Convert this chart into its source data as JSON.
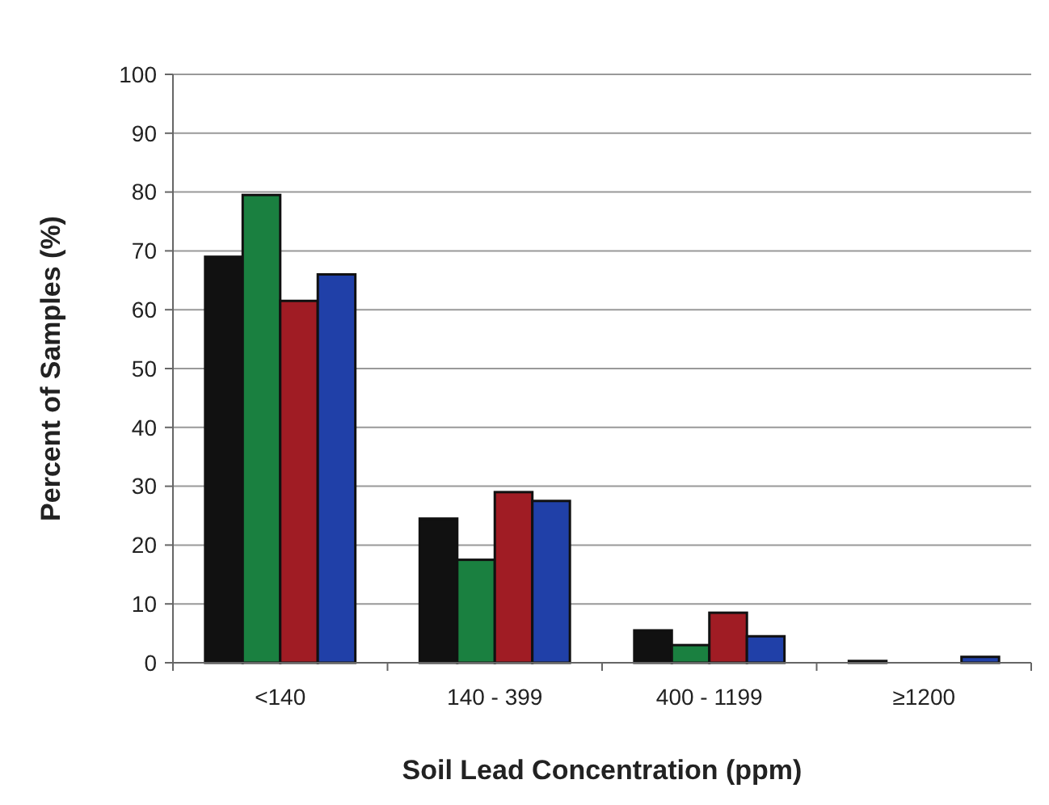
{
  "chart_data": {
    "type": "bar",
    "xlabel": "Soil Lead Concentration (ppm)",
    "ylabel": "Percent of Samples (%)",
    "categories": [
      "<140",
      "140 - 399",
      "400 - 1199",
      "≥1200"
    ],
    "series": [
      {
        "color": "#111111",
        "values": [
          69,
          24.5,
          5.5,
          0.3
        ]
      },
      {
        "color": "#1a8040",
        "values": [
          79.5,
          17.5,
          3,
          0
        ]
      },
      {
        "color": "#a01c24",
        "values": [
          61.5,
          29,
          8.5,
          0
        ]
      },
      {
        "color": "#2040a8",
        "values": [
          66,
          27.5,
          4.5,
          1
        ]
      }
    ],
    "ylim": [
      0,
      100
    ],
    "yticks": [
      0,
      10,
      20,
      30,
      40,
      50,
      60,
      70,
      80,
      90,
      100
    ],
    "grid": "y"
  }
}
